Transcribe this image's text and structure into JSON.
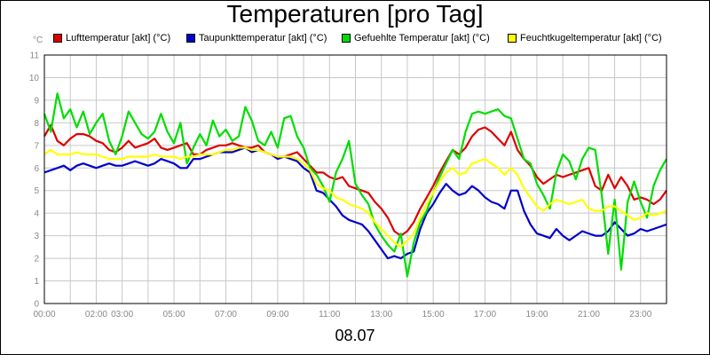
{
  "chart_data": {
    "type": "line",
    "title": "Temperaturen [pro Tag]",
    "ylabel": "°C",
    "xlabel": "08.07",
    "ylim": [
      0,
      11
    ],
    "yticks": [
      "0",
      "1",
      "2",
      "3",
      "4",
      "5",
      "6",
      "7",
      "8",
      "9",
      "10",
      "11"
    ],
    "xlim": [
      0,
      24
    ],
    "xticks": [
      {
        "h": 0,
        "label": "00:00"
      },
      {
        "h": 2,
        "label": "02:00"
      },
      {
        "h": 3,
        "label": "03:00"
      },
      {
        "h": 5,
        "label": "05:00"
      },
      {
        "h": 7,
        "label": "07:00"
      },
      {
        "h": 9,
        "label": "09:00"
      },
      {
        "h": 11,
        "label": "11:00"
      },
      {
        "h": 13,
        "label": "13:00"
      },
      {
        "h": 15,
        "label": "15:00"
      },
      {
        "h": 17,
        "label": "17:00"
      },
      {
        "h": 19,
        "label": "19:00"
      },
      {
        "h": 21,
        "label": "21:00"
      },
      {
        "h": 23,
        "label": "23:00"
      }
    ],
    "grid": true,
    "series": [
      {
        "name": "Lufttemperatur [akt] (°C)",
        "color": "#dd0000",
        "x": [
          0,
          0.25,
          0.5,
          0.75,
          1,
          1.25,
          1.5,
          1.75,
          2,
          2.25,
          2.5,
          2.75,
          3,
          3.25,
          3.5,
          3.75,
          4,
          4.25,
          4.5,
          4.75,
          5,
          5.25,
          5.5,
          5.75,
          6,
          6.25,
          6.5,
          6.75,
          7,
          7.25,
          7.5,
          7.75,
          8,
          8.25,
          8.5,
          8.75,
          9,
          9.25,
          9.5,
          9.75,
          10,
          10.25,
          10.5,
          10.75,
          11,
          11.25,
          11.5,
          11.75,
          12,
          12.25,
          12.5,
          12.75,
          13,
          13.25,
          13.5,
          13.75,
          14,
          14.25,
          14.5,
          14.75,
          15,
          15.25,
          15.5,
          15.75,
          16,
          16.25,
          16.5,
          16.75,
          17,
          17.25,
          17.5,
          17.75,
          18,
          18.25,
          18.5,
          18.75,
          19,
          19.25,
          19.5,
          19.75,
          20,
          20.25,
          20.5,
          20.75,
          21,
          21.25,
          21.5,
          21.75,
          22,
          22.25,
          22.5,
          22.75,
          23,
          23.25,
          23.5,
          23.75,
          24
        ],
        "values": [
          7.4,
          7.9,
          7.2,
          7.0,
          7.3,
          7.5,
          7.5,
          7.4,
          7.2,
          7.1,
          6.8,
          6.7,
          6.9,
          7.2,
          6.9,
          7.0,
          7.1,
          7.3,
          6.9,
          6.8,
          6.9,
          7.0,
          7.1,
          6.6,
          6.6,
          6.8,
          6.9,
          7.0,
          7.0,
          7.1,
          7.0,
          6.9,
          6.9,
          7.0,
          6.7,
          6.6,
          6.5,
          6.5,
          6.6,
          6.7,
          6.4,
          6.1,
          5.8,
          5.8,
          5.6,
          5.5,
          5.6,
          5.2,
          5.1,
          5.0,
          4.9,
          4.5,
          4.2,
          3.8,
          3.2,
          3.0,
          3.2,
          3.6,
          4.2,
          4.7,
          5.2,
          5.8,
          6.3,
          6.8,
          6.6,
          6.9,
          7.4,
          7.7,
          7.8,
          7.6,
          7.3,
          7.0,
          7.6,
          6.8,
          6.4,
          6.1,
          5.6,
          5.3,
          5.5,
          5.7,
          5.6,
          5.7,
          5.8,
          5.9,
          6.0,
          5.2,
          5.0,
          5.7,
          5.1,
          5.6,
          5.2,
          4.6,
          4.7,
          4.6,
          4.4,
          4.6,
          5.0
        ]
      },
      {
        "name": "Taupunkttemperatur [akt] (°C)",
        "color": "#0000cc",
        "x": [
          0,
          0.25,
          0.5,
          0.75,
          1,
          1.25,
          1.5,
          1.75,
          2,
          2.25,
          2.5,
          2.75,
          3,
          3.25,
          3.5,
          3.75,
          4,
          4.25,
          4.5,
          4.75,
          5,
          5.25,
          5.5,
          5.75,
          6,
          6.25,
          6.5,
          6.75,
          7,
          7.25,
          7.5,
          7.75,
          8,
          8.25,
          8.5,
          8.75,
          9,
          9.25,
          9.5,
          9.75,
          10,
          10.25,
          10.5,
          10.75,
          11,
          11.25,
          11.5,
          11.75,
          12,
          12.25,
          12.5,
          12.75,
          13,
          13.25,
          13.5,
          13.75,
          14,
          14.25,
          14.5,
          14.75,
          15,
          15.25,
          15.5,
          15.75,
          16,
          16.25,
          16.5,
          16.75,
          17,
          17.25,
          17.5,
          17.75,
          18,
          18.25,
          18.5,
          18.75,
          19,
          19.25,
          19.5,
          19.75,
          20,
          20.25,
          20.5,
          20.75,
          21,
          21.25,
          21.5,
          21.75,
          22,
          22.25,
          22.5,
          22.75,
          23,
          23.25,
          23.5,
          23.75,
          24
        ],
        "values": [
          5.8,
          5.9,
          6.0,
          6.1,
          5.9,
          6.1,
          6.2,
          6.1,
          6.0,
          6.1,
          6.2,
          6.1,
          6.1,
          6.2,
          6.3,
          6.2,
          6.1,
          6.2,
          6.4,
          6.3,
          6.2,
          6.0,
          6.0,
          6.4,
          6.4,
          6.5,
          6.6,
          6.7,
          6.7,
          6.7,
          6.8,
          6.9,
          6.7,
          6.8,
          6.7,
          6.6,
          6.4,
          6.5,
          6.4,
          6.3,
          6.0,
          5.8,
          5.0,
          4.9,
          4.6,
          4.3,
          3.9,
          3.7,
          3.6,
          3.5,
          3.2,
          2.8,
          2.4,
          2.0,
          2.1,
          2.0,
          2.2,
          2.3,
          3.3,
          4.0,
          4.4,
          4.9,
          5.3,
          5.0,
          4.8,
          4.9,
          5.2,
          5.0,
          4.7,
          4.5,
          4.4,
          4.2,
          5.0,
          5.0,
          4.1,
          3.5,
          3.1,
          3.0,
          2.9,
          3.3,
          3.0,
          2.8,
          3.0,
          3.2,
          3.1,
          3.0,
          3.0,
          3.2,
          3.6,
          3.3,
          3.0,
          3.1,
          3.3,
          3.2,
          3.3,
          3.4,
          3.5
        ]
      },
      {
        "name": "Gefuehlte Temperatur [akt] (°C)",
        "color": "#00dd00",
        "x": [
          0,
          0.25,
          0.5,
          0.75,
          1,
          1.25,
          1.5,
          1.75,
          2,
          2.25,
          2.5,
          2.75,
          3,
          3.25,
          3.5,
          3.75,
          4,
          4.25,
          4.5,
          4.75,
          5,
          5.25,
          5.5,
          5.75,
          6,
          6.25,
          6.5,
          6.75,
          7,
          7.25,
          7.5,
          7.75,
          8,
          8.25,
          8.5,
          8.75,
          9,
          9.25,
          9.5,
          9.75,
          10,
          10.25,
          10.5,
          10.75,
          11,
          11.25,
          11.5,
          11.75,
          12,
          12.25,
          12.5,
          12.75,
          13,
          13.25,
          13.5,
          13.75,
          14,
          14.25,
          14.5,
          14.75,
          15,
          15.25,
          15.5,
          15.75,
          16,
          16.25,
          16.5,
          16.75,
          17,
          17.25,
          17.5,
          17.75,
          18,
          18.25,
          18.5,
          18.75,
          19,
          19.25,
          19.5,
          19.75,
          20,
          20.25,
          20.5,
          20.75,
          21,
          21.25,
          21.5,
          21.75,
          22,
          22.25,
          22.5,
          22.75,
          23,
          23.25,
          23.5,
          23.75,
          24
        ],
        "values": [
          8.4,
          7.6,
          9.3,
          8.2,
          8.6,
          7.8,
          8.5,
          7.5,
          8.0,
          8.4,
          7.2,
          6.6,
          7.4,
          8.5,
          8.0,
          7.5,
          7.3,
          7.6,
          8.4,
          7.6,
          7.1,
          8.0,
          6.2,
          6.9,
          7.5,
          7.0,
          8.1,
          7.4,
          7.7,
          7.2,
          7.4,
          8.7,
          8.1,
          7.2,
          7.0,
          7.6,
          6.9,
          8.2,
          8.3,
          7.4,
          6.9,
          6.0,
          5.7,
          5.2,
          4.5,
          5.8,
          6.4,
          7.2,
          5.3,
          4.8,
          4.4,
          3.5,
          3.0,
          2.6,
          2.3,
          3.1,
          1.2,
          2.7,
          3.6,
          4.1,
          4.9,
          5.6,
          6.2,
          6.8,
          6.4,
          7.6,
          8.4,
          8.5,
          8.4,
          8.5,
          8.6,
          8.3,
          8.2,
          7.3,
          6.4,
          6.2,
          5.3,
          4.8,
          4.2,
          5.8,
          6.6,
          6.3,
          5.5,
          6.4,
          6.9,
          6.8,
          4.8,
          2.2,
          4.6,
          1.5,
          4.5,
          5.4,
          4.5,
          3.8,
          5.2,
          5.9,
          6.4
        ]
      },
      {
        "name": "Feuchtkugeltemperatur [akt] (°C)",
        "color": "#ffff00",
        "x": [
          0,
          0.25,
          0.5,
          0.75,
          1,
          1.25,
          1.5,
          1.75,
          2,
          2.25,
          2.5,
          2.75,
          3,
          3.25,
          3.5,
          3.75,
          4,
          4.25,
          4.5,
          4.75,
          5,
          5.25,
          5.5,
          5.75,
          6,
          6.25,
          6.5,
          6.75,
          7,
          7.25,
          7.5,
          7.75,
          8,
          8.25,
          8.5,
          8.75,
          9,
          9.25,
          9.5,
          9.75,
          10,
          10.25,
          10.5,
          10.75,
          11,
          11.25,
          11.5,
          11.75,
          12,
          12.25,
          12.5,
          12.75,
          13,
          13.25,
          13.5,
          13.75,
          14,
          14.25,
          14.5,
          14.75,
          15,
          15.25,
          15.5,
          15.75,
          16,
          16.25,
          16.5,
          16.75,
          17,
          17.25,
          17.5,
          17.75,
          18,
          18.25,
          18.5,
          18.75,
          19,
          19.25,
          19.5,
          19.75,
          20,
          20.25,
          20.5,
          20.75,
          21,
          21.25,
          21.5,
          21.75,
          22,
          22.25,
          22.5,
          22.75,
          23,
          23.25,
          23.5,
          23.75,
          24
        ],
        "values": [
          6.6,
          6.8,
          6.6,
          6.6,
          6.6,
          6.7,
          6.6,
          6.6,
          6.6,
          6.5,
          6.4,
          6.4,
          6.4,
          6.5,
          6.5,
          6.5,
          6.5,
          6.6,
          6.5,
          6.5,
          6.5,
          6.4,
          6.5,
          6.5,
          6.6,
          6.6,
          6.6,
          6.7,
          6.8,
          6.8,
          6.9,
          6.9,
          6.8,
          6.8,
          6.7,
          6.6,
          6.5,
          6.5,
          6.5,
          6.4,
          6.2,
          5.9,
          5.3,
          5.1,
          5.0,
          4.7,
          4.6,
          4.4,
          4.3,
          4.2,
          4.0,
          3.6,
          3.3,
          3.0,
          2.7,
          2.5,
          2.8,
          3.1,
          3.8,
          4.4,
          4.9,
          5.4,
          5.8,
          6.0,
          5.7,
          5.8,
          6.2,
          6.3,
          6.4,
          6.2,
          6.0,
          5.7,
          6.0,
          5.7,
          5.1,
          4.7,
          4.3,
          4.1,
          4.4,
          4.6,
          4.5,
          4.4,
          4.5,
          4.6,
          4.2,
          4.1,
          4.1,
          4.3,
          4.3,
          4.1,
          3.9,
          3.7,
          3.8,
          4.0,
          3.9,
          4.0,
          4.1
        ]
      }
    ]
  }
}
